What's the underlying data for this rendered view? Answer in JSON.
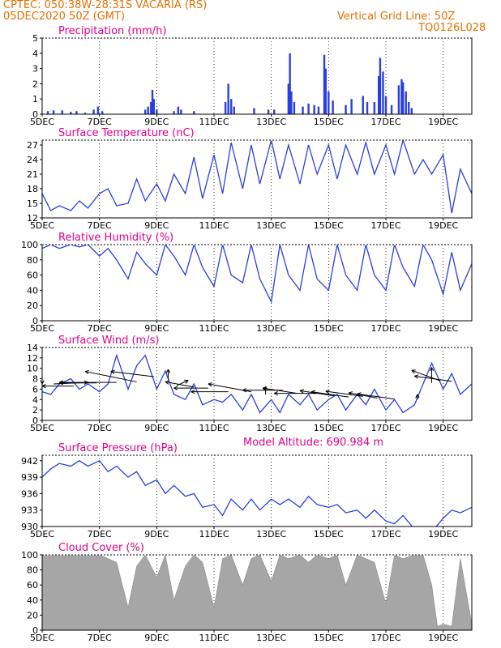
{
  "header": {
    "line1": "CPTEC:    050:38W-28:31S    VACARIA (RS)",
    "line2": "05DEC2020  50Z  (GMT)",
    "grid_note": "Vertical Grid Line: 50Z",
    "code": "TQ0126L028",
    "altitude": "Model Altitude:  690.984  m",
    "header_color": "#e07000",
    "title_color": "#e0008a",
    "line_color": "#2a3fe0",
    "fill_color": "#a6a6a6"
  },
  "x_tick_labels": [
    "5DEC",
    "7DEC",
    "9DEC",
    "11DEC",
    "13DEC",
    "15DEC",
    "17DEC",
    "19DEC"
  ],
  "chart_data": [
    {
      "type": "bar",
      "title": "Precipitation  (mm/h)",
      "ylim": [
        0,
        5
      ],
      "yticks": [
        "0",
        "1",
        "2",
        "3",
        "4",
        "5"
      ],
      "x_range_days": [
        5,
        20
      ],
      "bars": [
        [
          5.2,
          0.2
        ],
        [
          5.4,
          0.25
        ],
        [
          5.7,
          0.25
        ],
        [
          6.0,
          0.15
        ],
        [
          6.2,
          0.2
        ],
        [
          6.5,
          0.1
        ],
        [
          6.8,
          0.3
        ],
        [
          6.95,
          0.5
        ],
        [
          7.1,
          0.2
        ],
        [
          8.6,
          0.3
        ],
        [
          8.7,
          0.5
        ],
        [
          8.8,
          0.8
        ],
        [
          8.85,
          1.6
        ],
        [
          8.9,
          1.0
        ],
        [
          9.0,
          0.3
        ],
        [
          9.6,
          0.2
        ],
        [
          9.75,
          0.5
        ],
        [
          9.85,
          0.3
        ],
        [
          10.3,
          0.2
        ],
        [
          11.4,
          0.8
        ],
        [
          11.5,
          2.0
        ],
        [
          11.6,
          1.0
        ],
        [
          11.7,
          0.5
        ],
        [
          12.4,
          0.4
        ],
        [
          12.9,
          0.3
        ],
        [
          13.1,
          0.3
        ],
        [
          13.6,
          2.0
        ],
        [
          13.65,
          4.0
        ],
        [
          13.7,
          1.5
        ],
        [
          13.8,
          0.8
        ],
        [
          14.1,
          0.5
        ],
        [
          14.3,
          0.7
        ],
        [
          14.5,
          0.6
        ],
        [
          14.65,
          0.5
        ],
        [
          14.85,
          3.9
        ],
        [
          14.9,
          3.0
        ],
        [
          15.0,
          1.5
        ],
        [
          15.15,
          0.9
        ],
        [
          15.6,
          0.6
        ],
        [
          15.8,
          1.0
        ],
        [
          16.2,
          1.2
        ],
        [
          16.35,
          0.8
        ],
        [
          16.6,
          0.8
        ],
        [
          16.75,
          2.5
        ],
        [
          16.8,
          3.7
        ],
        [
          16.9,
          2.8
        ],
        [
          17.0,
          1.2
        ],
        [
          17.2,
          0.6
        ],
        [
          17.45,
          1.9
        ],
        [
          17.55,
          2.3
        ],
        [
          17.6,
          2.1
        ],
        [
          17.7,
          1.5
        ],
        [
          17.8,
          0.8
        ],
        [
          17.9,
          0.4
        ]
      ]
    },
    {
      "type": "line",
      "title": "Surface Temperature  (nC)",
      "ylim": [
        12,
        28
      ],
      "yticks": [
        "12",
        "15",
        "18",
        "21",
        "24",
        "27"
      ],
      "x_range_days": [
        5,
        20
      ],
      "x": [
        5.0,
        5.3,
        5.6,
        6.0,
        6.3,
        6.6,
        7.0,
        7.3,
        7.6,
        8.0,
        8.3,
        8.6,
        9.0,
        9.3,
        9.6,
        10.0,
        10.3,
        10.6,
        11.0,
        11.3,
        11.6,
        12.0,
        12.3,
        12.6,
        13.0,
        13.3,
        13.6,
        14.0,
        14.3,
        14.6,
        15.0,
        15.3,
        15.6,
        16.0,
        16.3,
        16.6,
        17.0,
        17.3,
        17.6,
        18.0,
        18.3,
        18.6,
        19.0,
        19.3,
        19.6,
        20.0
      ],
      "y": [
        17,
        13.5,
        14.5,
        13.5,
        15.5,
        14,
        17,
        18,
        14.5,
        15,
        20,
        15.5,
        19,
        15.5,
        21,
        17,
        24.5,
        16,
        25,
        17,
        27.5,
        18,
        27,
        19,
        28,
        20,
        27,
        19,
        27,
        21,
        27,
        20,
        27,
        21,
        27.5,
        21,
        27,
        21,
        28,
        21,
        24,
        21,
        25,
        13,
        22,
        17
      ]
    },
    {
      "type": "line",
      "title": "Relative Humidity  (%)",
      "ylim": [
        0,
        100
      ],
      "yticks": [
        "0",
        "20",
        "40",
        "60",
        "80",
        "100"
      ],
      "x_range_days": [
        5,
        20
      ],
      "x": [
        5.0,
        5.3,
        5.6,
        6.0,
        6.3,
        6.6,
        7.0,
        7.3,
        7.6,
        8.0,
        8.3,
        8.6,
        9.0,
        9.3,
        9.6,
        10.0,
        10.3,
        10.6,
        11.0,
        11.3,
        11.6,
        12.0,
        12.3,
        12.6,
        13.0,
        13.3,
        13.6,
        14.0,
        14.3,
        14.6,
        15.0,
        15.3,
        15.6,
        16.0,
        16.3,
        16.6,
        17.0,
        17.3,
        17.6,
        18.0,
        18.3,
        18.6,
        19.0,
        19.3,
        19.6,
        20.0
      ],
      "y": [
        95,
        100,
        95,
        100,
        97,
        100,
        85,
        95,
        80,
        55,
        90,
        75,
        60,
        100,
        85,
        60,
        100,
        70,
        45,
        100,
        60,
        50,
        100,
        55,
        25,
        100,
        60,
        40,
        100,
        55,
        40,
        100,
        60,
        40,
        100,
        60,
        40,
        100,
        70,
        45,
        100,
        80,
        35,
        90,
        40,
        75
      ]
    },
    {
      "type": "line",
      "title": "Surface Wind  (m/s)",
      "ylim": [
        0,
        14
      ],
      "yticks": [
        "0",
        "2",
        "4",
        "6",
        "8",
        "10",
        "12",
        "14"
      ],
      "x_range_days": [
        5,
        20
      ],
      "x": [
        5.0,
        5.3,
        5.6,
        6.0,
        6.3,
        6.6,
        7.0,
        7.3,
        7.6,
        8.0,
        8.3,
        8.6,
        9.0,
        9.3,
        9.6,
        10.0,
        10.3,
        10.6,
        11.0,
        11.3,
        11.6,
        12.0,
        12.3,
        12.6,
        13.0,
        13.3,
        13.6,
        14.0,
        14.3,
        14.6,
        15.0,
        15.3,
        15.6,
        16.0,
        16.3,
        16.6,
        17.0,
        17.3,
        17.6,
        18.0,
        18.3,
        18.6,
        19.0,
        19.3,
        19.6,
        20.0
      ],
      "y": [
        5.5,
        5,
        7,
        8,
        6,
        7,
        5.5,
        7,
        12.5,
        6,
        10.5,
        12.5,
        6,
        9.5,
        5,
        4,
        7,
        3,
        4,
        3.5,
        5,
        2,
        5,
        1.5,
        4,
        1.5,
        5,
        3,
        5,
        2,
        4,
        5,
        2,
        5,
        3,
        6,
        2,
        4,
        1.5,
        3,
        7,
        11,
        6,
        9,
        5,
        7
      ],
      "arrows": [
        [
          5.0,
          8,
          -1.4,
          -1
        ],
        [
          5.4,
          7,
          1.2,
          0.3
        ],
        [
          6.1,
          6.6,
          -1.3,
          0
        ],
        [
          6.9,
          7.2,
          -1.3,
          0
        ],
        [
          7.6,
          7.3,
          -2.0,
          0
        ],
        [
          8.3,
          7.4,
          -1.8,
          2
        ],
        [
          8.9,
          8.4,
          -1.5,
          1
        ],
        [
          9.4,
          7.8,
          0,
          2
        ],
        [
          9.7,
          6.7,
          0.4,
          1
        ],
        [
          10.3,
          6.4,
          -1.0,
          1
        ],
        [
          10.8,
          6.2,
          -1.2,
          0
        ],
        [
          11.5,
          5.5,
          -1.3,
          0
        ],
        [
          12.3,
          5.5,
          -1.5,
          1.5
        ],
        [
          12.8,
          5.0,
          0,
          1.5
        ],
        [
          13.4,
          5.8,
          -1.4,
          0
        ],
        [
          13.9,
          5.2,
          -1.2,
          1
        ],
        [
          14.6,
          5.2,
          -1.5,
          0
        ],
        [
          15.2,
          4.7,
          -1.2,
          1
        ],
        [
          15.7,
          4.5,
          -1.3,
          1
        ],
        [
          16.2,
          4.6,
          -1.3,
          1
        ],
        [
          16.7,
          4.3,
          -1.0,
          1
        ],
        [
          17.3,
          4.1,
          -1.3,
          1
        ],
        [
          18.1,
          4.0,
          0,
          1
        ],
        [
          18.6,
          7.2,
          0,
          3
        ],
        [
          18.9,
          7.6,
          -1.0,
          2
        ],
        [
          19.3,
          7.5,
          -1.3,
          1
        ]
      ]
    },
    {
      "type": "line",
      "title": "Surface Pressure  (hPa)",
      "ylim": [
        930,
        943
      ],
      "yticks": [
        "930",
        "933",
        "936",
        "939",
        "942"
      ],
      "x_range_days": [
        5,
        20
      ],
      "x": [
        5.0,
        5.3,
        5.6,
        6.0,
        6.3,
        6.6,
        7.0,
        7.3,
        7.6,
        8.0,
        8.3,
        8.6,
        9.0,
        9.3,
        9.6,
        10.0,
        10.3,
        10.6,
        11.0,
        11.3,
        11.6,
        12.0,
        12.3,
        12.6,
        13.0,
        13.3,
        13.6,
        14.0,
        14.3,
        14.6,
        15.0,
        15.3,
        15.6,
        16.0,
        16.3,
        16.6,
        17.0,
        17.3,
        17.6,
        18.0,
        18.3,
        18.6,
        19.0,
        19.3,
        19.6,
        20.0
      ],
      "y": [
        939,
        940.5,
        941.5,
        941,
        942,
        941,
        942,
        940,
        941,
        939,
        940,
        937.5,
        938.5,
        936,
        937.5,
        935.5,
        936,
        933.5,
        934,
        932,
        935,
        933,
        935,
        933,
        935,
        934,
        935,
        933.5,
        935.5,
        934,
        933.5,
        934,
        932.5,
        933,
        931.5,
        933,
        931,
        930.5,
        932,
        929.5,
        930,
        929,
        931.5,
        933,
        932.5,
        933.5
      ]
    },
    {
      "type": "area",
      "title": "Cloud Cover  (%)",
      "ylim": [
        0,
        100
      ],
      "yticks": [
        "0",
        "20",
        "40",
        "60",
        "80",
        "100"
      ],
      "x_range_days": [
        5,
        20
      ],
      "x": [
        5.0,
        5.5,
        6.0,
        6.5,
        7.0,
        7.3,
        7.6,
        8.0,
        8.3,
        8.6,
        9.0,
        9.3,
        9.6,
        10.0,
        10.3,
        10.6,
        11.0,
        11.3,
        11.6,
        12.0,
        12.3,
        12.6,
        13.0,
        13.3,
        13.6,
        14.0,
        14.3,
        14.6,
        15.0,
        15.3,
        15.6,
        16.0,
        16.3,
        16.6,
        17.0,
        17.3,
        17.6,
        18.0,
        18.3,
        18.6,
        18.8,
        19.0,
        19.3,
        19.6,
        20.0
      ],
      "y": [
        100,
        100,
        100,
        100,
        100,
        95,
        90,
        30,
        85,
        100,
        70,
        100,
        40,
        85,
        100,
        90,
        30,
        95,
        100,
        60,
        95,
        100,
        65,
        100,
        95,
        100,
        90,
        100,
        95,
        100,
        60,
        100,
        95,
        90,
        35,
        100,
        95,
        100,
        100,
        60,
        5,
        8,
        5,
        95,
        8
      ]
    }
  ]
}
